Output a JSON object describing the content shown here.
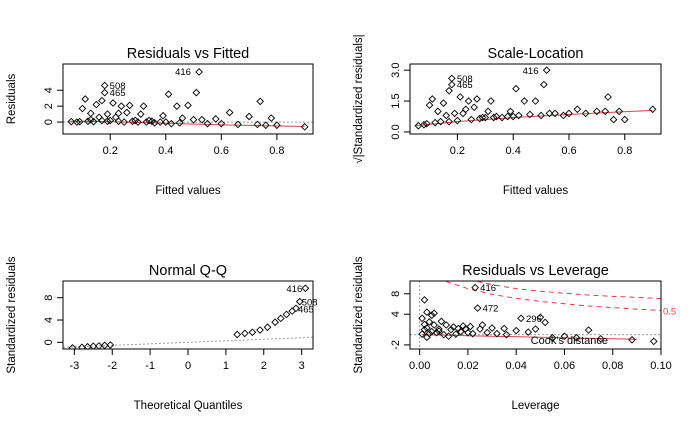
{
  "chart_data": [
    {
      "type": "scatter",
      "title": "Residuals vs Fitted",
      "xlabel": "Fitted values",
      "ylabel": "Residuals",
      "xlim": [
        0.03,
        0.93
      ],
      "ylim": [
        -1.5,
        7.3
      ],
      "xticks": [
        0.2,
        0.4,
        0.6,
        0.8
      ],
      "yticks": [
        0,
        2,
        4
      ],
      "reference_line_y": 0,
      "smoother": [
        [
          0.05,
          0.1
        ],
        [
          0.2,
          0.05
        ],
        [
          0.4,
          -0.15
        ],
        [
          0.6,
          -0.35
        ],
        [
          0.9,
          -0.55
        ]
      ],
      "points": [
        [
          0.06,
          0.05
        ],
        [
          0.08,
          0.0
        ],
        [
          0.09,
          0.05
        ],
        [
          0.1,
          1.7
        ],
        [
          0.11,
          2.9
        ],
        [
          0.12,
          0.1
        ],
        [
          0.13,
          1.1
        ],
        [
          0.13,
          0.3
        ],
        [
          0.14,
          0.05
        ],
        [
          0.15,
          2.2
        ],
        [
          0.16,
          0.6
        ],
        [
          0.17,
          2.7
        ],
        [
          0.17,
          0.2
        ],
        [
          0.18,
          4.6
        ],
        [
          0.18,
          3.7
        ],
        [
          0.19,
          1.0
        ],
        [
          0.19,
          0.1
        ],
        [
          0.2,
          0.2
        ],
        [
          0.21,
          2.4
        ],
        [
          0.22,
          0.6
        ],
        [
          0.23,
          1.1
        ],
        [
          0.23,
          0.1
        ],
        [
          0.24,
          2.0
        ],
        [
          0.25,
          0.0
        ],
        [
          0.26,
          1.2
        ],
        [
          0.27,
          2.1
        ],
        [
          0.28,
          0.1
        ],
        [
          0.29,
          0.2
        ],
        [
          0.3,
          0.0
        ],
        [
          0.31,
          1.0
        ],
        [
          0.32,
          2.0
        ],
        [
          0.33,
          0.0
        ],
        [
          0.34,
          0.2
        ],
        [
          0.35,
          0.1
        ],
        [
          0.36,
          -0.1
        ],
        [
          0.38,
          0.0
        ],
        [
          0.39,
          0.8
        ],
        [
          0.4,
          0.0
        ],
        [
          0.41,
          3.5
        ],
        [
          0.42,
          -0.2
        ],
        [
          0.44,
          2.0
        ],
        [
          0.45,
          -0.1
        ],
        [
          0.46,
          0.5
        ],
        [
          0.48,
          2.1
        ],
        [
          0.5,
          0.3
        ],
        [
          0.51,
          3.7
        ],
        [
          0.52,
          6.3
        ],
        [
          0.53,
          0.3
        ],
        [
          0.55,
          -0.2
        ],
        [
          0.58,
          0.4
        ],
        [
          0.6,
          -0.2
        ],
        [
          0.63,
          1.2
        ],
        [
          0.66,
          -0.3
        ],
        [
          0.7,
          0.7
        ],
        [
          0.73,
          -0.3
        ],
        [
          0.74,
          2.6
        ],
        [
          0.76,
          -0.4
        ],
        [
          0.78,
          0.5
        ],
        [
          0.8,
          -0.4
        ],
        [
          0.9,
          -0.6
        ]
      ],
      "labels": [
        {
          "text": "416",
          "x": 0.52,
          "y": 6.3
        },
        {
          "text": "508",
          "x": 0.18,
          "y": 4.6
        },
        {
          "text": "465",
          "x": 0.18,
          "y": 3.7
        }
      ]
    },
    {
      "type": "scatter",
      "title": "Scale-Location",
      "xlabel": "Fitted values",
      "ylabel": "√|Standardized residuals|",
      "xlim": [
        0.03,
        0.93
      ],
      "ylim": [
        -0.1,
        3.3
      ],
      "xticks": [
        0.2,
        0.4,
        0.6,
        0.8
      ],
      "yticks": [
        "0.0",
        "1.5",
        "3.0"
      ],
      "smoother": [
        [
          0.05,
          0.3
        ],
        [
          0.2,
          0.5
        ],
        [
          0.4,
          0.7
        ],
        [
          0.6,
          0.85
        ],
        [
          0.9,
          1.05
        ]
      ],
      "points": [
        [
          0.06,
          0.3
        ],
        [
          0.08,
          0.35
        ],
        [
          0.09,
          0.4
        ],
        [
          0.1,
          1.3
        ],
        [
          0.11,
          1.6
        ],
        [
          0.12,
          0.45
        ],
        [
          0.13,
          1.0
        ],
        [
          0.14,
          0.5
        ],
        [
          0.15,
          1.4
        ],
        [
          0.16,
          0.8
        ],
        [
          0.17,
          2.0
        ],
        [
          0.17,
          0.5
        ],
        [
          0.18,
          2.6
        ],
        [
          0.18,
          2.3
        ],
        [
          0.19,
          0.9
        ],
        [
          0.2,
          0.55
        ],
        [
          0.21,
          1.7
        ],
        [
          0.22,
          0.9
        ],
        [
          0.23,
          1.1
        ],
        [
          0.24,
          1.5
        ],
        [
          0.25,
          0.6
        ],
        [
          0.26,
          1.2
        ],
        [
          0.27,
          1.6
        ],
        [
          0.28,
          0.65
        ],
        [
          0.29,
          0.7
        ],
        [
          0.3,
          0.7
        ],
        [
          0.31,
          1.0
        ],
        [
          0.32,
          1.5
        ],
        [
          0.33,
          0.7
        ],
        [
          0.34,
          0.75
        ],
        [
          0.36,
          0.7
        ],
        [
          0.38,
          0.75
        ],
        [
          0.39,
          1.0
        ],
        [
          0.4,
          0.75
        ],
        [
          0.41,
          2.1
        ],
        [
          0.42,
          0.8
        ],
        [
          0.44,
          1.5
        ],
        [
          0.46,
          0.85
        ],
        [
          0.48,
          1.5
        ],
        [
          0.5,
          0.8
        ],
        [
          0.51,
          2.3
        ],
        [
          0.52,
          3.0
        ],
        [
          0.53,
          0.9
        ],
        [
          0.55,
          0.9
        ],
        [
          0.58,
          0.8
        ],
        [
          0.6,
          0.9
        ],
        [
          0.63,
          1.1
        ],
        [
          0.66,
          0.9
        ],
        [
          0.7,
          1.0
        ],
        [
          0.73,
          1.0
        ],
        [
          0.74,
          1.7
        ],
        [
          0.76,
          0.6
        ],
        [
          0.78,
          1.0
        ],
        [
          0.8,
          0.6
        ],
        [
          0.9,
          1.1
        ]
      ],
      "labels": [
        {
          "text": "416",
          "x": 0.52,
          "y": 3.0
        },
        {
          "text": "508",
          "x": 0.18,
          "y": 2.6
        },
        {
          "text": "465",
          "x": 0.18,
          "y": 2.3
        }
      ]
    },
    {
      "type": "scatter",
      "title": "Normal Q-Q",
      "xlabel": "Theoretical Quantiles",
      "ylabel": "Standardized residuals",
      "xlim": [
        -3.3,
        3.3
      ],
      "ylim": [
        -1.2,
        11
      ],
      "xticks": [
        -3,
        -2,
        -1,
        0,
        1,
        2,
        3
      ],
      "yticks": [
        0,
        4,
        8
      ],
      "qq_curve": [
        [
          -3.05,
          -1.0
        ],
        [
          -2.5,
          -0.7
        ],
        [
          -2.0,
          -0.45
        ],
        [
          -1.5,
          -0.25
        ],
        [
          -1.0,
          -0.1
        ],
        [
          -0.5,
          0.0
        ],
        [
          0.0,
          0.05
        ],
        [
          0.5,
          0.1
        ],
        [
          1.0,
          0.25
        ],
        [
          1.15,
          0.5
        ],
        [
          1.3,
          1.4
        ],
        [
          1.6,
          1.7
        ],
        [
          1.8,
          2.0
        ],
        [
          2.0,
          2.5
        ],
        [
          2.2,
          3.3
        ],
        [
          2.45,
          4.3
        ],
        [
          2.6,
          5.0
        ],
        [
          2.75,
          5.6
        ],
        [
          2.85,
          6.1
        ],
        [
          2.95,
          7.3
        ],
        [
          3.1,
          9.7
        ]
      ],
      "points": [
        [
          -3.05,
          -1.0
        ],
        [
          -2.8,
          -0.9
        ],
        [
          -2.65,
          -0.8
        ],
        [
          -2.5,
          -0.7
        ],
        [
          -2.35,
          -0.65
        ],
        [
          -2.2,
          -0.55
        ],
        [
          -2.05,
          -0.48
        ],
        [
          1.3,
          1.4
        ],
        [
          1.5,
          1.6
        ],
        [
          1.7,
          1.8
        ],
        [
          1.9,
          2.2
        ],
        [
          2.1,
          2.7
        ],
        [
          2.3,
          3.6
        ],
        [
          2.45,
          4.3
        ],
        [
          2.6,
          5.0
        ],
        [
          2.75,
          5.6
        ],
        [
          2.85,
          6.1
        ],
        [
          2.95,
          7.3
        ],
        [
          3.1,
          9.7
        ]
      ],
      "reference_line": [
        [
          -3.3,
          -0.9
        ],
        [
          3.3,
          0.9
        ]
      ],
      "labels": [
        {
          "text": "416",
          "x": 3.1,
          "y": 9.7
        },
        {
          "text": "508",
          "x": 2.95,
          "y": 7.3
        },
        {
          "text": "465",
          "x": 2.85,
          "y": 6.1
        }
      ]
    },
    {
      "type": "scatter",
      "title": "Residuals vs Leverage",
      "xlabel": "Leverage",
      "ylabel": "Standardized residuals",
      "xlim": [
        -0.004,
        0.1
      ],
      "ylim": [
        -2.8,
        10.5
      ],
      "xticks": [
        "0.00",
        "0.02",
        "0.04",
        "0.06",
        "0.08",
        "0.10"
      ],
      "yticks": [
        -2,
        4,
        8
      ],
      "annotation": "Cook's distance",
      "contour_label": "0.5",
      "contours": [
        [
          [
            0.011,
            10.4
          ],
          [
            0.02,
            9.0
          ],
          [
            0.03,
            7.9
          ],
          [
            0.04,
            7.1
          ],
          [
            0.05,
            6.5
          ],
          [
            0.06,
            6.05
          ],
          [
            0.07,
            5.6
          ],
          [
            0.08,
            5.3
          ],
          [
            0.09,
            5.0
          ],
          [
            0.1,
            4.75
          ]
        ],
        [
          [
            0.024,
            10.4
          ],
          [
            0.03,
            9.8
          ],
          [
            0.04,
            9.0
          ],
          [
            0.05,
            8.5
          ],
          [
            0.06,
            8.1
          ],
          [
            0.07,
            7.75
          ],
          [
            0.08,
            7.5
          ],
          [
            0.09,
            7.3
          ],
          [
            0.1,
            7.05
          ]
        ]
      ],
      "smoother": [
        [
          0.001,
          0.0
        ],
        [
          0.02,
          -0.2
        ],
        [
          0.05,
          -0.5
        ],
        [
          0.09,
          -0.9
        ]
      ],
      "points": [
        [
          0.001,
          0.1
        ],
        [
          0.001,
          3.2
        ],
        [
          0.002,
          1.0
        ],
        [
          0.002,
          6.8
        ],
        [
          0.002,
          2.0
        ],
        [
          0.003,
          -0.5
        ],
        [
          0.003,
          4.4
        ],
        [
          0.003,
          1.3
        ],
        [
          0.004,
          2.5
        ],
        [
          0.004,
          0.2
        ],
        [
          0.005,
          3.8
        ],
        [
          0.005,
          0.6
        ],
        [
          0.006,
          1.9
        ],
        [
          0.006,
          4.2
        ],
        [
          0.007,
          0.4
        ],
        [
          0.008,
          1.1
        ],
        [
          0.008,
          0.7
        ],
        [
          0.009,
          2.6
        ],
        [
          0.01,
          0.0
        ],
        [
          0.011,
          1.9
        ],
        [
          0.012,
          -0.3
        ],
        [
          0.013,
          1.0
        ],
        [
          0.014,
          1.5
        ],
        [
          0.015,
          0.1
        ],
        [
          0.016,
          1.2
        ],
        [
          0.017,
          0.6
        ],
        [
          0.018,
          1.7
        ],
        [
          0.019,
          1.1
        ],
        [
          0.02,
          0.4
        ],
        [
          0.021,
          1.6
        ],
        [
          0.022,
          0.2
        ],
        [
          0.023,
          9.2
        ],
        [
          0.024,
          5.2
        ],
        [
          0.025,
          1.1
        ],
        [
          0.026,
          1.9
        ],
        [
          0.028,
          0.4
        ],
        [
          0.03,
          1.3
        ],
        [
          0.032,
          0.2
        ],
        [
          0.035,
          1.2
        ],
        [
          0.036,
          0.0
        ],
        [
          0.04,
          0.8
        ],
        [
          0.042,
          3.2
        ],
        [
          0.045,
          0.5
        ],
        [
          0.048,
          1.1
        ],
        [
          0.05,
          3.4
        ],
        [
          0.052,
          2.4
        ],
        [
          0.055,
          -0.6
        ],
        [
          0.06,
          -0.3
        ],
        [
          0.065,
          -0.6
        ],
        [
          0.07,
          0.9
        ],
        [
          0.075,
          -0.8
        ],
        [
          0.088,
          -1.0
        ],
        [
          0.097,
          -1.3
        ]
      ],
      "labels": [
        {
          "text": "416",
          "x": 0.023,
          "y": 9.2
        },
        {
          "text": "472",
          "x": 0.024,
          "y": 5.2
        },
        {
          "text": "296",
          "x": 0.042,
          "y": 3.2
        }
      ]
    }
  ]
}
